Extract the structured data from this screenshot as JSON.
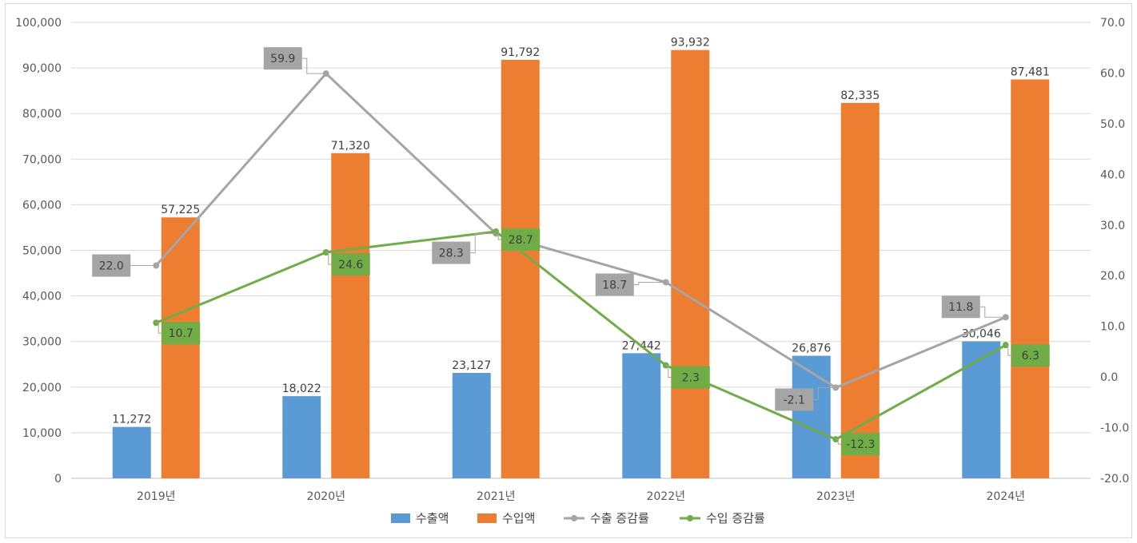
{
  "chart_data": {
    "type": "bar",
    "categories": [
      "2019년",
      "2020년",
      "2021년",
      "2022년",
      "2023년",
      "2024년"
    ],
    "series": [
      {
        "name": "수출액",
        "kind": "bar",
        "axis": "left",
        "color": "#5b9bd5",
        "values": [
          11272,
          18022,
          23127,
          27442,
          26876,
          30046
        ],
        "labels": [
          "11,272",
          "18,022",
          "23,127",
          "27,442",
          "26,876",
          "30,046"
        ]
      },
      {
        "name": "수입액",
        "kind": "bar",
        "axis": "left",
        "color": "#ed7d31",
        "values": [
          57225,
          71320,
          91792,
          93932,
          82335,
          87481
        ],
        "labels": [
          "57,225",
          "71,320",
          "91,792",
          "93,932",
          "82,335",
          "87,481"
        ]
      },
      {
        "name": "수출 증감률",
        "kind": "line",
        "axis": "right",
        "color": "#a5a5a5",
        "values": [
          22.0,
          59.9,
          28.3,
          18.7,
          -2.1,
          11.8
        ],
        "labels": [
          "22.0",
          "59.9",
          "28.3",
          "18.7",
          "-2.1",
          "11.8"
        ]
      },
      {
        "name": "수입 증감률",
        "kind": "line",
        "axis": "right",
        "color": "#70ad47",
        "values": [
          10.7,
          24.6,
          28.7,
          2.3,
          -12.3,
          6.3
        ],
        "labels": [
          "10.7",
          "24.6",
          "28.7",
          "2.3",
          "-12.3",
          "6.3"
        ]
      }
    ],
    "y_left": {
      "min": 0,
      "max": 100000,
      "step": 10000,
      "ticks": [
        "0",
        "10,000",
        "20,000",
        "30,000",
        "40,000",
        "50,000",
        "60,000",
        "70,000",
        "80,000",
        "90,000",
        "100,000"
      ]
    },
    "y_right": {
      "min": -20,
      "max": 70,
      "step": 10,
      "ticks": [
        "-20.0",
        "-10.0",
        "0.0",
        "10.0",
        "20.0",
        "30.0",
        "40.0",
        "50.0",
        "60.0",
        "70.0"
      ]
    },
    "grid": true,
    "legend": "bottom",
    "gridColor": "#d9d9d9",
    "callouts": {
      "exportLabelBg": "#a5a5a5",
      "importLabelBg": "#70ad47"
    }
  }
}
